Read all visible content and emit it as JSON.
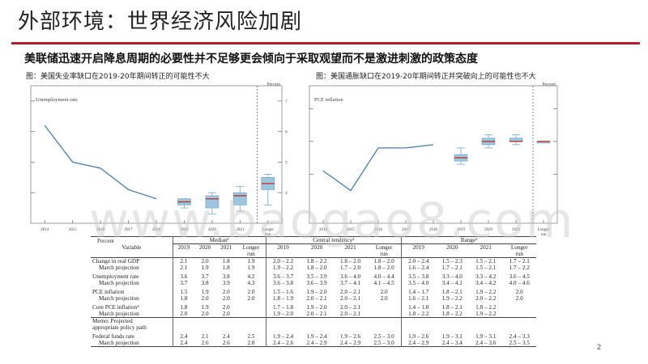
{
  "slide": {
    "title": "外部环境：世界经济风险加剧",
    "subtitle": "美联储迅速开启降息周期的必要性并不足够更会倾向于采取观望而不是激进刺激的政策态度",
    "page_number": "2",
    "watermark": "www.baogao8.com",
    "accent_color": "#b0202a"
  },
  "chart_data": [
    {
      "type": "line",
      "caption": "图：美国失业率缺口在2019-20年期间转正的可能性不大",
      "title": "Unemployment rate",
      "ylabel": "Percent",
      "x_ticks": [
        "2014",
        "2015",
        "2016",
        "2017",
        "2018",
        "2019",
        "2020",
        "2021",
        "Longer run"
      ],
      "y_ticks": [
        4,
        5,
        6,
        7
      ],
      "ylim": [
        3,
        7.5
      ],
      "history": {
        "x": [
          2014,
          2015,
          2016,
          2017,
          2018
        ],
        "y": [
          6.2,
          5.0,
          4.8,
          4.1,
          3.8
        ]
      },
      "projections": [
        {
          "year": "2019",
          "median": 3.7,
          "ct": [
            3.6,
            3.8
          ],
          "range": [
            3.5,
            3.8
          ]
        },
        {
          "year": "2020",
          "median": 3.8,
          "ct": [
            3.5,
            3.9
          ],
          "range": [
            3.3,
            4.0
          ]
        },
        {
          "year": "2021",
          "median": 3.9,
          "ct": [
            3.6,
            4.0
          ],
          "range": [
            3.4,
            4.2
          ]
        },
        {
          "year": "Longer run",
          "median": 4.3,
          "ct": [
            4.1,
            4.5
          ],
          "range": [
            3.6,
            4.6
          ]
        }
      ]
    },
    {
      "type": "line",
      "caption": "图：美国通胀缺口在2019-20年期间转正并突破向上的可能性也不大",
      "title": "PCE inflation",
      "ylabel": "Percent",
      "x_ticks": [
        "2014",
        "2015",
        "2016",
        "2017",
        "2018",
        "2019",
        "2020",
        "2021",
        "Longer run"
      ],
      "y_ticks": [
        1,
        2,
        3
      ],
      "ylim": [
        -0.5,
        3.7
      ],
      "history": {
        "x": [
          2014,
          2015,
          2016,
          2017,
          2018
        ],
        "y": [
          1.1,
          0.5,
          1.8,
          1.8,
          1.9
        ]
      },
      "projections": [
        {
          "year": "2019",
          "median": 1.5,
          "ct": [
            1.4,
            1.6
          ],
          "range": [
            1.3,
            1.8
          ]
        },
        {
          "year": "2020",
          "median": 2.0,
          "ct": [
            1.9,
            2.1
          ],
          "range": [
            1.8,
            2.2
          ]
        },
        {
          "year": "2021",
          "median": 2.0,
          "ct": [
            2.0,
            2.1
          ],
          "range": [
            1.9,
            2.2
          ]
        },
        {
          "year": "Longer run",
          "median": 2.0,
          "ct": [
            2.0,
            2.0
          ],
          "range": [
            2.0,
            2.0
          ]
        }
      ]
    }
  ],
  "table": {
    "percent_label": "Percent",
    "variable_header": "Variable",
    "groups": [
      "Median¹",
      "Central tendency²",
      "Range³"
    ],
    "year_headers": [
      "2019",
      "2020",
      "2021",
      "Longer run"
    ],
    "rows": [
      {
        "label": "Change in real GDP",
        "median": [
          "2.1",
          "2.0",
          "1.8",
          "1.9"
        ],
        "ct": [
          "2.0 – 2.2",
          "1.8 – 2.2",
          "1.8 – 2.0",
          "1.8 – 2.0"
        ],
        "range": [
          "2.0 – 2.4",
          "1.5 – 2.3",
          "1.5 – 2.1",
          "1.7 – 2.1"
        ]
      },
      {
        "label": "March projection",
        "indent": true,
        "median": [
          "2.1",
          "1.9",
          "1.8",
          "1.9"
        ],
        "ct": [
          "1.9 – 2.2",
          "1.8 – 2.0",
          "1.7 – 2.0",
          "1.8 – 2.0"
        ],
        "range": [
          "1.6 – 2.4",
          "1.7 – 2.1",
          "1.5 – 2.1",
          "1.7 – 2.2"
        ]
      },
      {
        "gap": true
      },
      {
        "label": "Unemployment rate",
        "median": [
          "3.6",
          "3.7",
          "3.8",
          "4.2"
        ],
        "ct": [
          "3.6 – 3.7",
          "3.5 – 3.9",
          "3.6 – 4.0",
          "4.0 – 4.4"
        ],
        "range": [
          "3.5 – 3.8",
          "3.3 – 4.0",
          "3.3 – 4.2",
          "3.6 – 4.5"
        ]
      },
      {
        "label": "March projection",
        "indent": true,
        "median": [
          "3.7",
          "3.8",
          "3.9",
          "4.3"
        ],
        "ct": [
          "3.6 – 3.8",
          "3.6 – 3.9",
          "3.7 – 4.1",
          "4.1 – 4.5"
        ],
        "range": [
          "3.5 – 4.0",
          "3.4 – 4.1",
          "3.4 – 4.2",
          "4.0 – 4.6"
        ]
      },
      {
        "gap": true
      },
      {
        "label": "PCE inflation",
        "median": [
          "1.5",
          "1.9",
          "2.0",
          "2.0"
        ],
        "ct": [
          "1.5 – 1.6",
          "1.9 – 2.0",
          "2.0 – 2.1",
          "2.0"
        ],
        "range": [
          "1.4 – 1.7",
          "1.8 – 2.1",
          "1.9 – 2.2",
          "2.0"
        ]
      },
      {
        "label": "March projection",
        "indent": true,
        "median": [
          "1.8",
          "2.0",
          "2.0",
          "2.0"
        ],
        "ct": [
          "1.8 – 1.9",
          "2.0 – 2.1",
          "2.0 – 2.1",
          "2.0"
        ],
        "range": [
          "1.6 – 2.1",
          "1.9 – 2.2",
          "2.0 – 2.2",
          "2.0"
        ]
      },
      {
        "gap": true
      },
      {
        "label": "Core PCE inflation⁴",
        "median": [
          "1.8",
          "1.9",
          "2.0",
          ""
        ],
        "ct": [
          "1.7 – 1.8",
          "1.9 – 2.0",
          "2.0 – 2.1",
          ""
        ],
        "range": [
          "1.4 – 1.8",
          "1.8 – 2.1",
          "1.8 – 2.2",
          ""
        ]
      },
      {
        "label": "March projection",
        "indent": true,
        "median": [
          "2.0",
          "2.0",
          "2.0",
          ""
        ],
        "ct": [
          "1.9 – 2.0",
          "2.0 – 2.1",
          "2.0 – 2.1",
          ""
        ],
        "range": [
          "1.8 – 2.2",
          "1.8 – 2.2",
          "1.9 – 2.2",
          ""
        ]
      }
    ],
    "memo_lines": [
      "Memo: Projected",
      "appropriate policy path"
    ],
    "fed_rows": [
      {
        "label": "Federal funds rate",
        "median": [
          "2.4",
          "2.1",
          "2.4",
          "2.5"
        ],
        "ct": [
          "1.9 – 2.4",
          "1.9 – 2.4",
          "1.9 – 2.6",
          "2.5 – 3.0"
        ],
        "range": [
          "1.9 – 2.6",
          "1.9 – 3.1",
          "1.9 – 3.1",
          "2.4 – 3.3"
        ]
      },
      {
        "label": "March projection",
        "indent": true,
        "median": [
          "2.4",
          "2.6",
          "2.6",
          "2.8"
        ],
        "ct": [
          "2.4 – 2.6",
          "2.4 – 2.9",
          "2.4 – 2.9",
          "2.5 – 3.0"
        ],
        "range": [
          "2.4 – 2.9",
          "2.4 – 3.4",
          "2.4 – 3.6",
          "2.5 – 3.5"
        ]
      }
    ]
  }
}
